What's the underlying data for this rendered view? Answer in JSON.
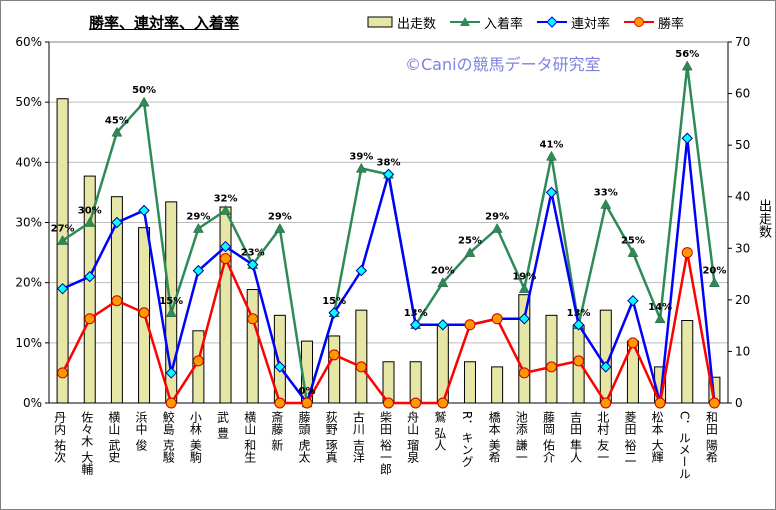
{
  "chart_data": {
    "type": "bar+line",
    "title": "勝率、連対率、入着率",
    "watermark": "©Caniの競馬データ研究室",
    "categories": [
      "丹内 祐次",
      "佐々木 大輔",
      "横山 武史",
      "浜中 俊",
      "鮫島 克駿",
      "小林 美駒",
      "武 豊",
      "横山 和生",
      "斎藤 新",
      "藤頭 虎太",
      "荻野 琢真",
      "古川 吉洋",
      "柴田 裕一郎",
      "舟山 瑠泉",
      "鷲 弘人",
      "R．キング",
      "橋本 美希",
      "池添 謙一",
      "藤岡 佑介",
      "吉田 隼人",
      "北村 友一",
      "菱田 裕二",
      "松本 大輝",
      "C．ルメール",
      "和田 陽希"
    ],
    "y_left": {
      "label": "",
      "min": 0,
      "max": 60,
      "ticks": [
        "0%",
        "10%",
        "20%",
        "30%",
        "40%",
        "50%",
        "60%"
      ]
    },
    "y_right": {
      "label": "出走数",
      "min": 0,
      "max": 70,
      "ticks": [
        "0",
        "10",
        "20",
        "30",
        "40",
        "50",
        "60",
        "70"
      ]
    },
    "legend_position": "top",
    "series": [
      {
        "name": "出走数",
        "type": "bar",
        "axis": "right",
        "color": "#e6e6a6",
        "values": [
          59,
          44,
          40,
          34,
          39,
          14,
          38,
          22,
          17,
          12,
          13,
          18,
          8,
          8,
          15,
          8,
          7,
          21,
          17,
          15,
          18,
          12,
          7,
          16,
          5
        ]
      },
      {
        "name": "入着率",
        "type": "line",
        "axis": "left",
        "unit": "%",
        "color": "#2e8b57",
        "values": [
          27,
          30,
          45,
          50,
          15,
          29,
          32,
          23,
          29,
          0,
          15,
          39,
          38,
          13,
          20,
          25,
          29,
          19,
          41,
          13,
          33,
          25,
          14,
          56,
          20
        ],
        "data_labels": [
          "27%",
          "30%",
          "45%",
          "50%",
          "15%",
          "29%",
          "32%",
          "23%",
          "29%",
          "0%",
          "15%",
          "39%",
          "38%",
          "13%",
          "20%",
          "25%",
          "29%",
          "19%",
          "41%",
          "13%",
          "33%",
          "25%",
          "14%",
          "56%",
          "20%"
        ]
      },
      {
        "name": "連対率",
        "type": "line",
        "axis": "left",
        "unit": "%",
        "color": "#0000ff",
        "values": [
          19,
          21,
          30,
          32,
          5,
          22,
          26,
          23,
          6,
          0,
          15,
          22,
          38,
          13,
          13,
          13,
          14,
          14,
          35,
          13,
          6,
          17,
          0,
          44,
          0
        ]
      },
      {
        "name": "勝率",
        "type": "line",
        "axis": "left",
        "unit": "%",
        "color": "#ff0000",
        "values": [
          5,
          14,
          17,
          15,
          0,
          7,
          24,
          14,
          0,
          0,
          8,
          6,
          0,
          0,
          0,
          13,
          14,
          5,
          6,
          7,
          0,
          10,
          0,
          25,
          0
        ]
      }
    ]
  }
}
